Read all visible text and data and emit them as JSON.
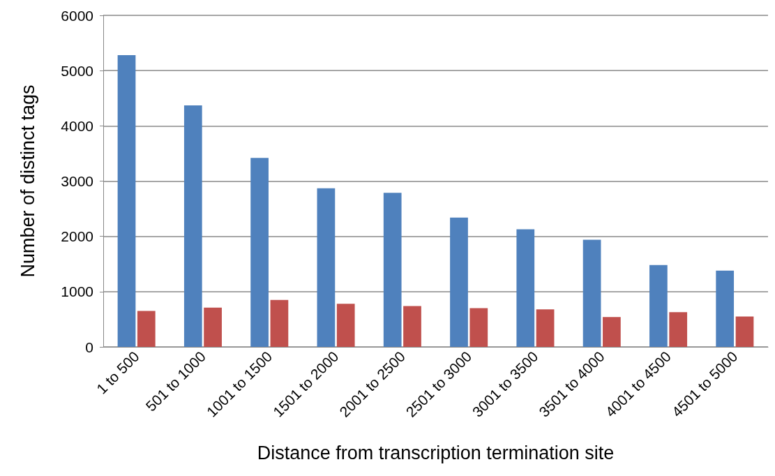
{
  "chart_data": {
    "type": "bar",
    "xlabel": "Distance from transcription termination site",
    "ylabel": "Number of distinct tags",
    "categories": [
      "1 to 500",
      "501 to 1000",
      "1001 to 1500",
      "1501 to 2000",
      "2001 to 2500",
      "2501 to 3000",
      "3001 to 3500",
      "3501 to 4000",
      "4001 to 4500",
      "4501 to 5000"
    ],
    "series": [
      {
        "color": "#4f81bd",
        "values": [
          5280,
          4370,
          3420,
          2870,
          2790,
          2340,
          2130,
          1940,
          1480,
          1380
        ]
      },
      {
        "color": "#c0504d",
        "values": [
          650,
          710,
          850,
          780,
          740,
          700,
          680,
          540,
          630,
          550
        ]
      }
    ],
    "ylim": [
      0,
      6000
    ],
    "yticks": [
      0,
      1000,
      2000,
      3000,
      4000,
      5000,
      6000
    ],
    "grid": "y"
  }
}
